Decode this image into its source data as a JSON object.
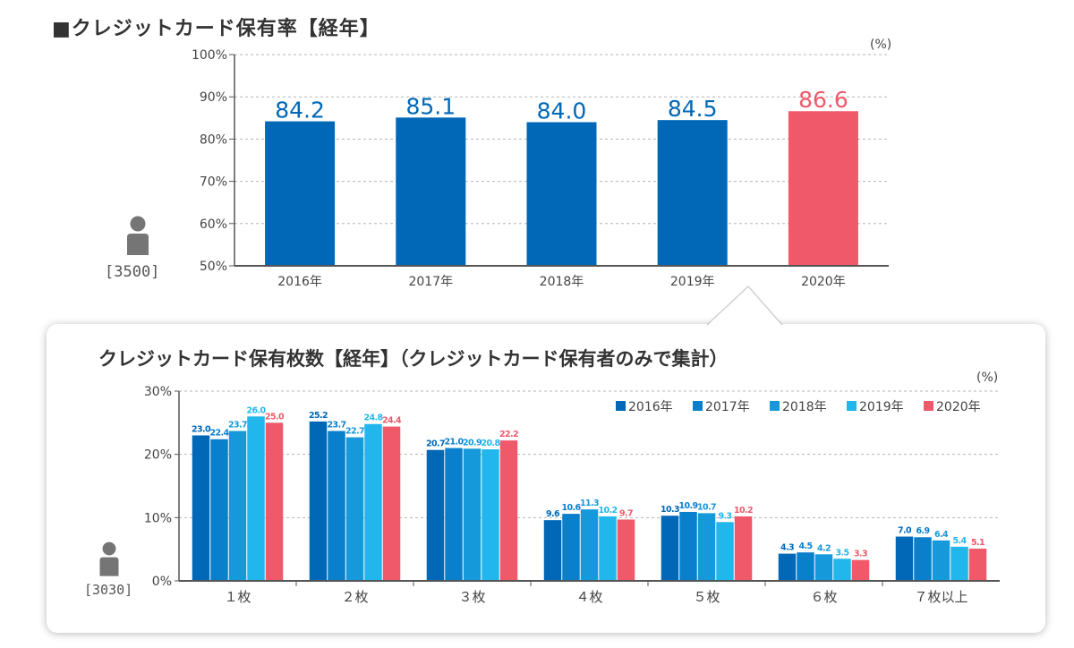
{
  "title1": "■クレジットカード保有率【経年】",
  "title2": "クレジットカード保有枚数【経年】（クレジットカード保有者のみで集計）",
  "unit": "(%)",
  "sample1": "[3500]",
  "sample2": "[3030]",
  "person_icon": "person-icon",
  "colors": {
    "y2016": "#0068b7",
    "y2017": "#0a7fcc",
    "y2018": "#1699db",
    "y2019": "#22b7ec",
    "y2020": "#f0596a",
    "axis": "#555555",
    "grid": "#b5b5b5",
    "icon": "#757575"
  },
  "chart_data": [
    {
      "type": "bar",
      "title": "クレジットカード保有率【経年】",
      "categories": [
        "2016年",
        "2017年",
        "2018年",
        "2019年",
        "2020年"
      ],
      "values": [
        84.2,
        85.1,
        84.0,
        84.5,
        86.6
      ],
      "value_labels": [
        "84.2",
        "85.1",
        "84.0",
        "84.5",
        "86.6"
      ],
      "ylim": [
        50,
        100
      ],
      "yticks": [
        50,
        60,
        70,
        80,
        90,
        100
      ],
      "ytick_labels": [
        "50%",
        "60%",
        "70%",
        "80%",
        "90%",
        "100%"
      ],
      "unit": "(%)",
      "grid": true,
      "highlight_index": 4
    },
    {
      "type": "bar",
      "title": "クレジットカード保有枚数【経年】（クレジットカード保有者のみで集計）",
      "categories": [
        "１枚",
        "２枚",
        "３枚",
        "４枚",
        "５枚",
        "６枚",
        "７枚以上"
      ],
      "series": [
        {
          "name": "2016年",
          "values": [
            23.0,
            25.2,
            20.7,
            9.6,
            10.3,
            4.3,
            7.0
          ]
        },
        {
          "name": "2017年",
          "values": [
            22.4,
            23.7,
            21.0,
            10.6,
            10.9,
            4.5,
            6.9
          ]
        },
        {
          "name": "2018年",
          "values": [
            23.7,
            22.7,
            20.9,
            11.3,
            10.7,
            4.2,
            6.4
          ]
        },
        {
          "name": "2019年",
          "values": [
            26.0,
            24.8,
            20.8,
            10.2,
            9.3,
            3.5,
            5.4
          ]
        },
        {
          "name": "2020年",
          "values": [
            25.0,
            24.4,
            22.2,
            9.7,
            10.2,
            3.3,
            5.1
          ]
        }
      ],
      "ylim": [
        0,
        30
      ],
      "yticks": [
        0,
        10,
        20,
        30
      ],
      "ytick_labels": [
        "0%",
        "10%",
        "20%",
        "30%"
      ],
      "unit": "(%)",
      "grid": true,
      "legend": "top-right"
    }
  ]
}
